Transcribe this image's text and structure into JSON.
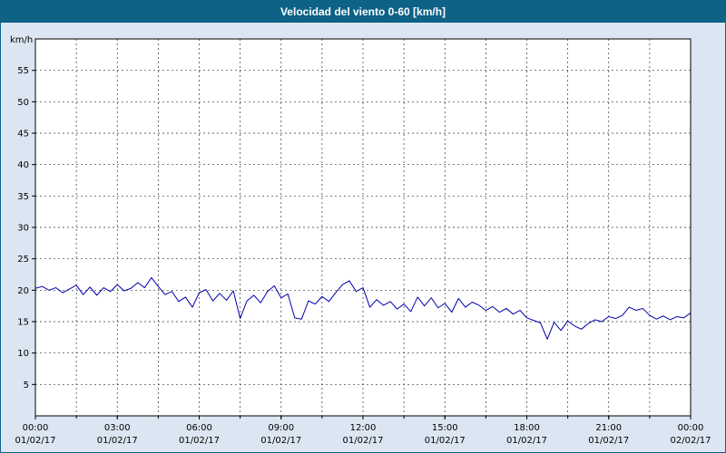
{
  "title": "Velocidad del viento 0-60 [km/h]",
  "colors": {
    "titlebar": "#0e6286",
    "window_border": "#0e6286",
    "background": "#dce6f2",
    "plot_background": "#ffffff",
    "grid": "#333333",
    "axis": "#000000",
    "line": "#0000aa"
  },
  "chart_data": {
    "type": "line",
    "title": "Velocidad del viento 0-60 [km/h]",
    "series_name": "Velocidad del viento",
    "xlabel": "",
    "ylabel": "km/h",
    "ylim": [
      0,
      60
    ],
    "ytick_step": 5,
    "ytick_labels": [
      "5",
      "10",
      "15",
      "20",
      "25",
      "30",
      "35",
      "40",
      "45",
      "50",
      "55"
    ],
    "xlim_hours": [
      0,
      24
    ],
    "gridline_interval_hours": 1.5,
    "grid": "dashed",
    "legend": "none",
    "line_color": "#0000aa",
    "x_start_hour": 0,
    "x_step_hours": 0.25,
    "values": [
      20.3,
      20.6,
      20.0,
      20.4,
      19.6,
      20.2,
      20.8,
      19.3,
      20.5,
      19.2,
      20.4,
      19.8,
      20.9,
      19.9,
      20.3,
      21.2,
      20.4,
      22.0,
      20.6,
      19.3,
      19.8,
      18.2,
      18.9,
      17.3,
      19.6,
      20.1,
      18.3,
      19.5,
      18.4,
      19.9,
      15.5,
      18.3,
      19.2,
      18.0,
      19.8,
      20.7,
      18.8,
      19.4,
      15.6,
      15.4,
      18.3,
      17.8,
      19.0,
      18.2,
      19.6,
      20.9,
      21.5,
      19.8,
      20.4,
      17.3,
      18.5,
      17.6,
      18.2,
      17.0,
      17.8,
      16.6,
      18.9,
      17.5,
      18.8,
      17.2,
      17.9,
      16.5,
      18.7,
      17.3,
      18.1,
      17.6,
      16.8,
      17.4,
      16.5,
      17.1,
      16.2,
      16.8,
      15.6,
      15.2,
      14.8,
      12.2,
      14.9,
      13.6,
      15.1,
      14.3,
      13.8,
      14.7,
      15.3,
      15.0,
      15.8,
      15.5,
      16.0,
      17.3,
      16.8,
      17.1,
      16.0,
      15.4,
      15.9,
      15.3,
      15.8,
      15.6,
      16.4
    ],
    "xticks": [
      {
        "hour": 0,
        "time": "00:00",
        "date": "01/02/17"
      },
      {
        "hour": 3,
        "time": "03:00",
        "date": "01/02/17"
      },
      {
        "hour": 6,
        "time": "06:00",
        "date": "01/02/17"
      },
      {
        "hour": 9,
        "time": "09:00",
        "date": "01/02/17"
      },
      {
        "hour": 12,
        "time": "12:00",
        "date": "01/02/17"
      },
      {
        "hour": 15,
        "time": "15:00",
        "date": "01/02/17"
      },
      {
        "hour": 18,
        "time": "18:00",
        "date": "01/02/17"
      },
      {
        "hour": 21,
        "time": "21:00",
        "date": "01/02/17"
      },
      {
        "hour": 24,
        "time": "00:00",
        "date": "02/02/17"
      }
    ]
  }
}
